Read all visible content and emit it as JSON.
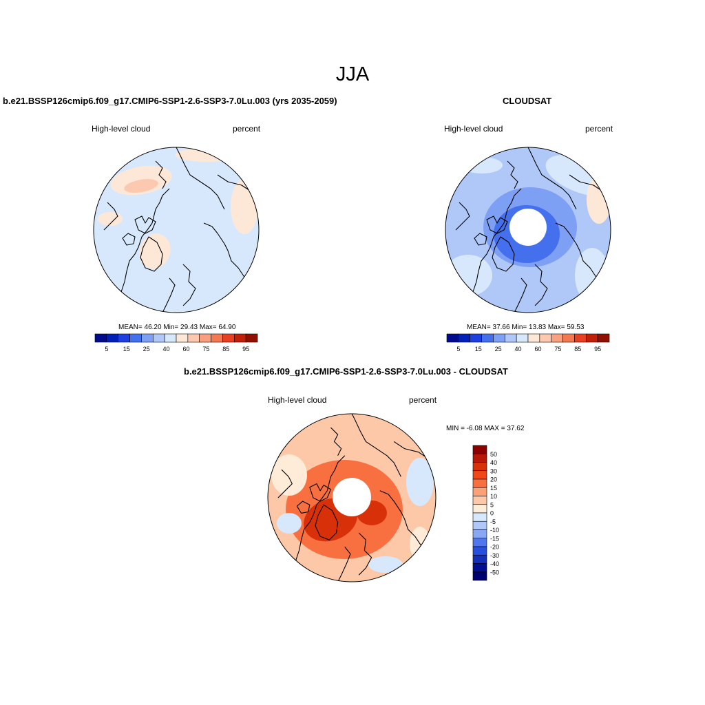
{
  "main_title": "JJA",
  "panels": [
    {
      "title": "b.e21.BSSP126cmip6.f09_g17.CMIP6-SSP1-2.6-SSP3-7.0Lu.003 (yrs 2035-2059)",
      "left_label": "High-level cloud",
      "right_label": "percent",
      "stats": "MEAN=  46.20  Min=  29.43  Max=  64.90",
      "stats_values": {
        "mean": 46.2,
        "min": 29.43,
        "max": 64.9
      }
    },
    {
      "title": "CLOUDSAT",
      "left_label": "High-level cloud",
      "right_label": "percent",
      "stats": "MEAN=  37.66  Min=  13.83  Max=  59.53",
      "stats_values": {
        "mean": 37.66,
        "min": 13.83,
        "max": 59.53
      }
    },
    {
      "title": "b.e21.BSSP126cmip6.f09_g17.CMIP6-SSP1-2.6-SSP3-7.0Lu.003 - CLOUDSAT",
      "left_label": "High-level cloud",
      "right_label": "percent",
      "stats": "MIN =  -6.08 MAX =  37.62",
      "stats_values": {
        "min": -6.08,
        "max": 37.62
      }
    }
  ],
  "colorbar_abs": {
    "labels": [
      "5",
      "15",
      "25",
      "40",
      "60",
      "75",
      "85",
      "95"
    ],
    "colors": [
      "#000c8c",
      "#0020b8",
      "#1f40e0",
      "#4470ee",
      "#7ea0f4",
      "#b0c8f8",
      "#d8e8fc",
      "#fde8d8",
      "#fcc8b0",
      "#f8a080",
      "#f47850",
      "#e84020",
      "#c02008",
      "#901000"
    ]
  },
  "colorbar_diff": {
    "labels": [
      "50",
      "40",
      "30",
      "20",
      "15",
      "10",
      "5",
      "0",
      "-5",
      "-10",
      "-15",
      "-20",
      "-30",
      "-40",
      "-50"
    ],
    "colors": [
      "#8c0000",
      "#b81808",
      "#d83008",
      "#f04818",
      "#f87040",
      "#fca078",
      "#fcc8a8",
      "#feebd8",
      "#d8e8fc",
      "#b0c8f8",
      "#88a8f4",
      "#5078ec",
      "#2850e0",
      "#1430b8",
      "#001090",
      "#000070"
    ]
  },
  "map_colors": {
    "panel1_base": "#d8e8fc",
    "panel1_warm": "#fde8d8",
    "panel1_warm2": "#fcc8b0",
    "panel2_base": "#b0c8f8",
    "panel2_mid": "#7ea0f4",
    "panel2_dark": "#4470ee",
    "panel2_light": "#d8e8fc",
    "panel2_warm": "#fde8d8",
    "panel3_base": "#fcc8a8",
    "panel3_mid": "#f87040",
    "panel3_dark": "#d83008",
    "panel3_light": "#feebd8",
    "panel3_cool": "#d8e8fc"
  }
}
